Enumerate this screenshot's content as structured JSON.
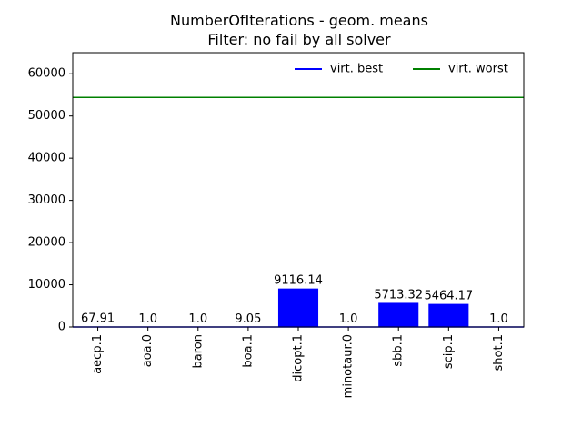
{
  "chart_data": {
    "type": "bar",
    "title": "NumberOfIterations - geom. means",
    "subtitle": "Filter: no fail by all solver",
    "xlabel": "",
    "ylabel": "",
    "categories": [
      "aecp.1",
      "aoa.0",
      "baron",
      "boa.1",
      "dicopt.1",
      "minotaur.0",
      "sbb.1",
      "scip.1",
      "shot.1"
    ],
    "values": [
      67.91,
      1.0,
      1.0,
      9.05,
      9116.14,
      1.0,
      5713.32,
      5464.17,
      1.0
    ],
    "value_labels": [
      "67.91",
      "1.0",
      "1.0",
      "9.05",
      "9116.14",
      "1.0",
      "5713.32",
      "5464.17",
      "1.0"
    ],
    "ylim": [
      0,
      65000
    ],
    "yticks": [
      0,
      10000,
      20000,
      30000,
      40000,
      50000,
      60000
    ],
    "reference_lines": [
      {
        "name": "virt. best",
        "value": 1.0,
        "color": "#0000ff"
      },
      {
        "name": "virt. worst",
        "value": 54400,
        "color": "#008000"
      }
    ],
    "bar_color": "#0000ff",
    "grid": false,
    "legend_position": "top-right"
  }
}
